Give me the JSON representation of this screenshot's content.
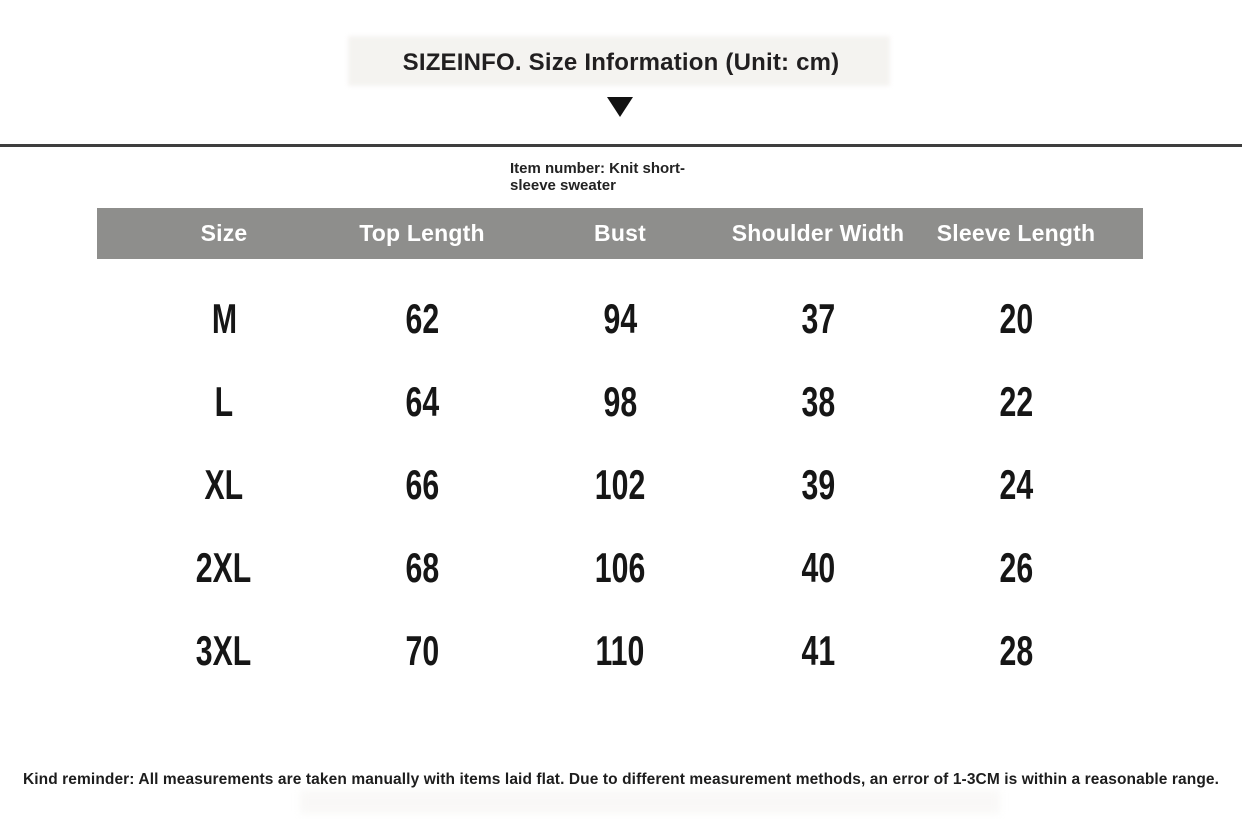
{
  "page": {
    "title": "SIZEINFO. Size Information (Unit: cm)",
    "item_note": "Item number: Knit short-sleeve sweater",
    "footer_note": "Kind reminder: All measurements are taken manually with items laid flat. Due to different measurement methods, an error of 1-3CM is within a reasonable range."
  },
  "colors": {
    "header_bg": "#8e8e8c",
    "header_text": "#ffffff",
    "divider": "#3e3e3e",
    "body_text": "#161616",
    "background": "#ffffff"
  },
  "icons": {
    "down_arrow": "triangle-down"
  },
  "size_table": {
    "columns": [
      "Size",
      "Top Length",
      "Bust",
      "Shoulder Width",
      "Sleeve Length"
    ],
    "rows": [
      [
        "M",
        "62",
        "94",
        "37",
        "20"
      ],
      [
        "L",
        "64",
        "98",
        "38",
        "22"
      ],
      [
        "XL",
        "66",
        "102",
        "39",
        "24"
      ],
      [
        "2XL",
        "68",
        "106",
        "40",
        "26"
      ],
      [
        "3XL",
        "70",
        "110",
        "41",
        "28"
      ]
    ]
  }
}
